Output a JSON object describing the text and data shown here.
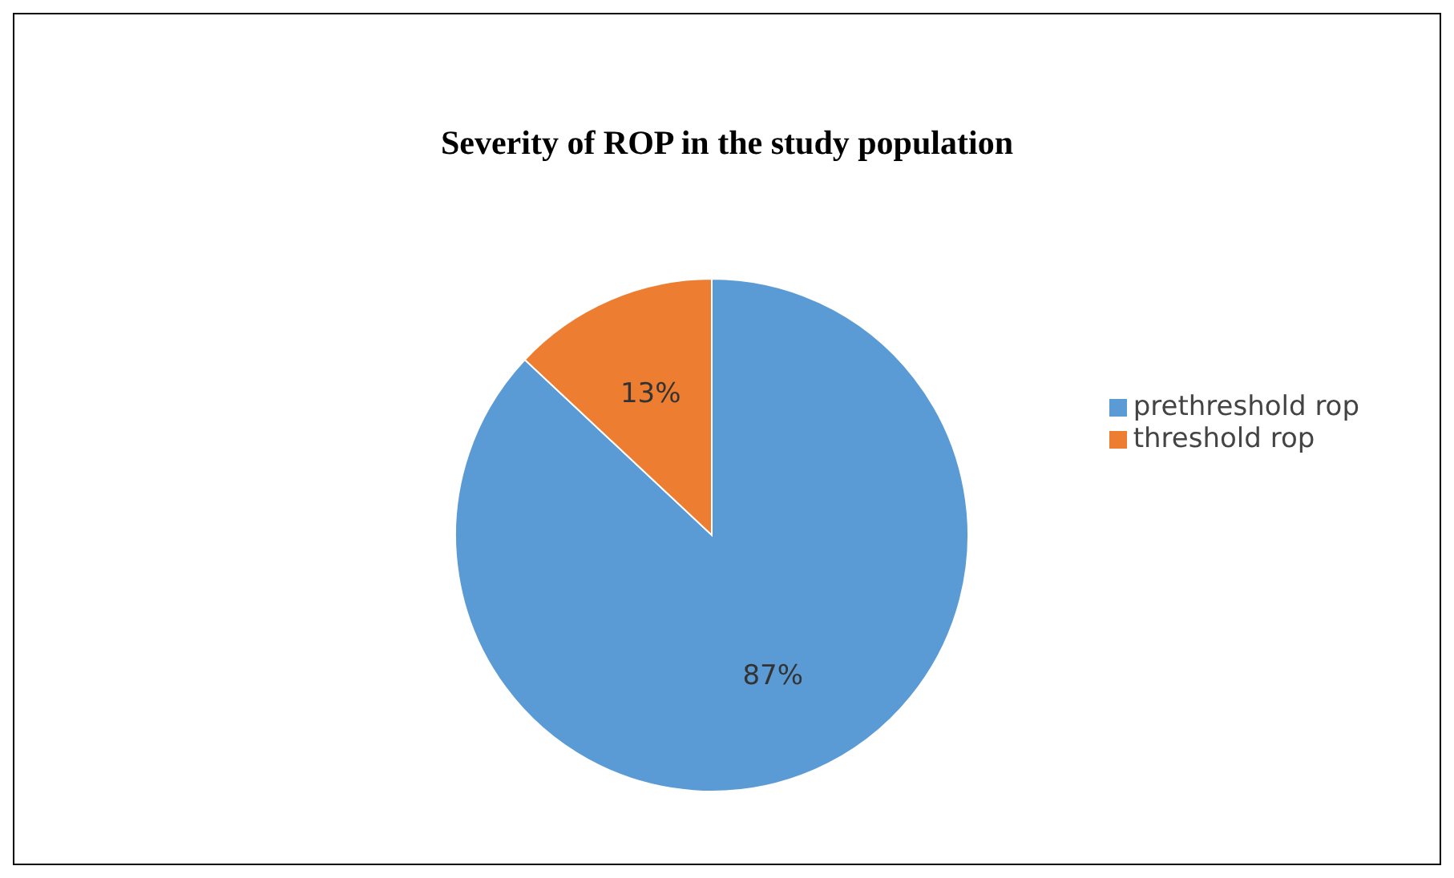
{
  "chart_data": {
    "type": "pie",
    "title": "Severity of ROP in the study population",
    "categories": [
      "prethreshold rop",
      "threshold rop"
    ],
    "values": [
      87,
      13
    ],
    "colors": [
      "#5b9bd5",
      "#ed7d31"
    ],
    "value_labels": [
      "87%",
      "13%"
    ],
    "legend": "right"
  }
}
